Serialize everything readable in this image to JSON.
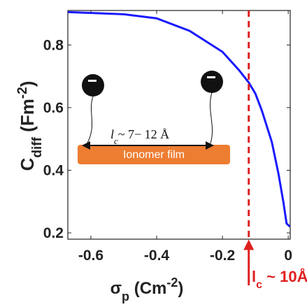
{
  "chart_data": {
    "type": "line",
    "x_label": {
      "main": "σ",
      "sub": "p",
      "rest": " (Cm",
      "sup": "-2",
      "end": ")"
    },
    "y_label": {
      "main": "C",
      "sub": "diff",
      "rest": " (Fm",
      "sup": "-2",
      "end": ")"
    },
    "x": [
      -0.67,
      -0.5,
      -0.4,
      -0.3,
      -0.2,
      -0.15,
      -0.12,
      -0.1,
      -0.08,
      -0.05,
      -0.03,
      -0.015,
      -0.005,
      0.005
    ],
    "series": [
      {
        "color": "#1a1aff",
        "values": [
          0.905,
          0.898,
          0.885,
          0.845,
          0.778,
          0.72,
          0.68,
          0.645,
          0.59,
          0.49,
          0.39,
          0.3,
          0.23,
          0.22
        ]
      }
    ],
    "xlim": [
      -0.67,
      0.006
    ],
    "ylim": [
      0.18,
      0.91
    ],
    "xticks": [
      -0.6,
      -0.4,
      -0.2,
      0
    ],
    "yticks": [
      0.2,
      0.4,
      0.6,
      0.8
    ],
    "vline": {
      "value": -0.12,
      "color": "#e02020"
    },
    "annotation": {
      "main": "l",
      "sub": "c",
      "rest": " ~ 10Å"
    },
    "inset": {
      "length_label": {
        "main": "l",
        "sub": "c",
        "rest": "~ 7− 12 Å"
      },
      "film_label": "Ionomer film"
    }
  }
}
